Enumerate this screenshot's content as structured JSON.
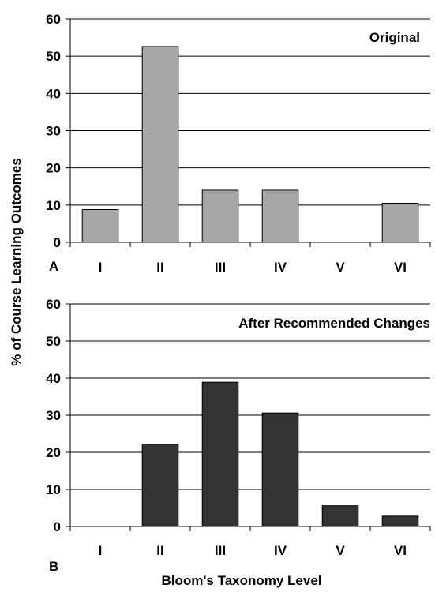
{
  "chart_data": [
    {
      "type": "bar",
      "panel_label": "A",
      "title": "Original",
      "categories": [
        "I",
        "II",
        "III",
        "IV",
        "V",
        "VI"
      ],
      "values": [
        8.8,
        52.6,
        14.0,
        14.0,
        0,
        10.5
      ],
      "ylim": [
        0,
        60
      ],
      "yticks": [
        "0",
        "10",
        "20",
        "30",
        "40",
        "50",
        "60"
      ],
      "grid": true,
      "color": "#a6a6a6"
    },
    {
      "type": "bar",
      "panel_label": "B",
      "title": "After Recommended Changes",
      "categories": [
        "I",
        "II",
        "III",
        "IV",
        "V",
        "VI"
      ],
      "values": [
        0,
        22.2,
        38.9,
        30.6,
        5.6,
        2.8
      ],
      "ylim": [
        0,
        60
      ],
      "yticks": [
        "0",
        "10",
        "20",
        "30",
        "40",
        "50",
        "60"
      ],
      "grid": true,
      "color": "#333333"
    }
  ],
  "ylabel": "% of Course Learning Outcomes",
  "xlabel": "Bloom's Taxonomy Level"
}
